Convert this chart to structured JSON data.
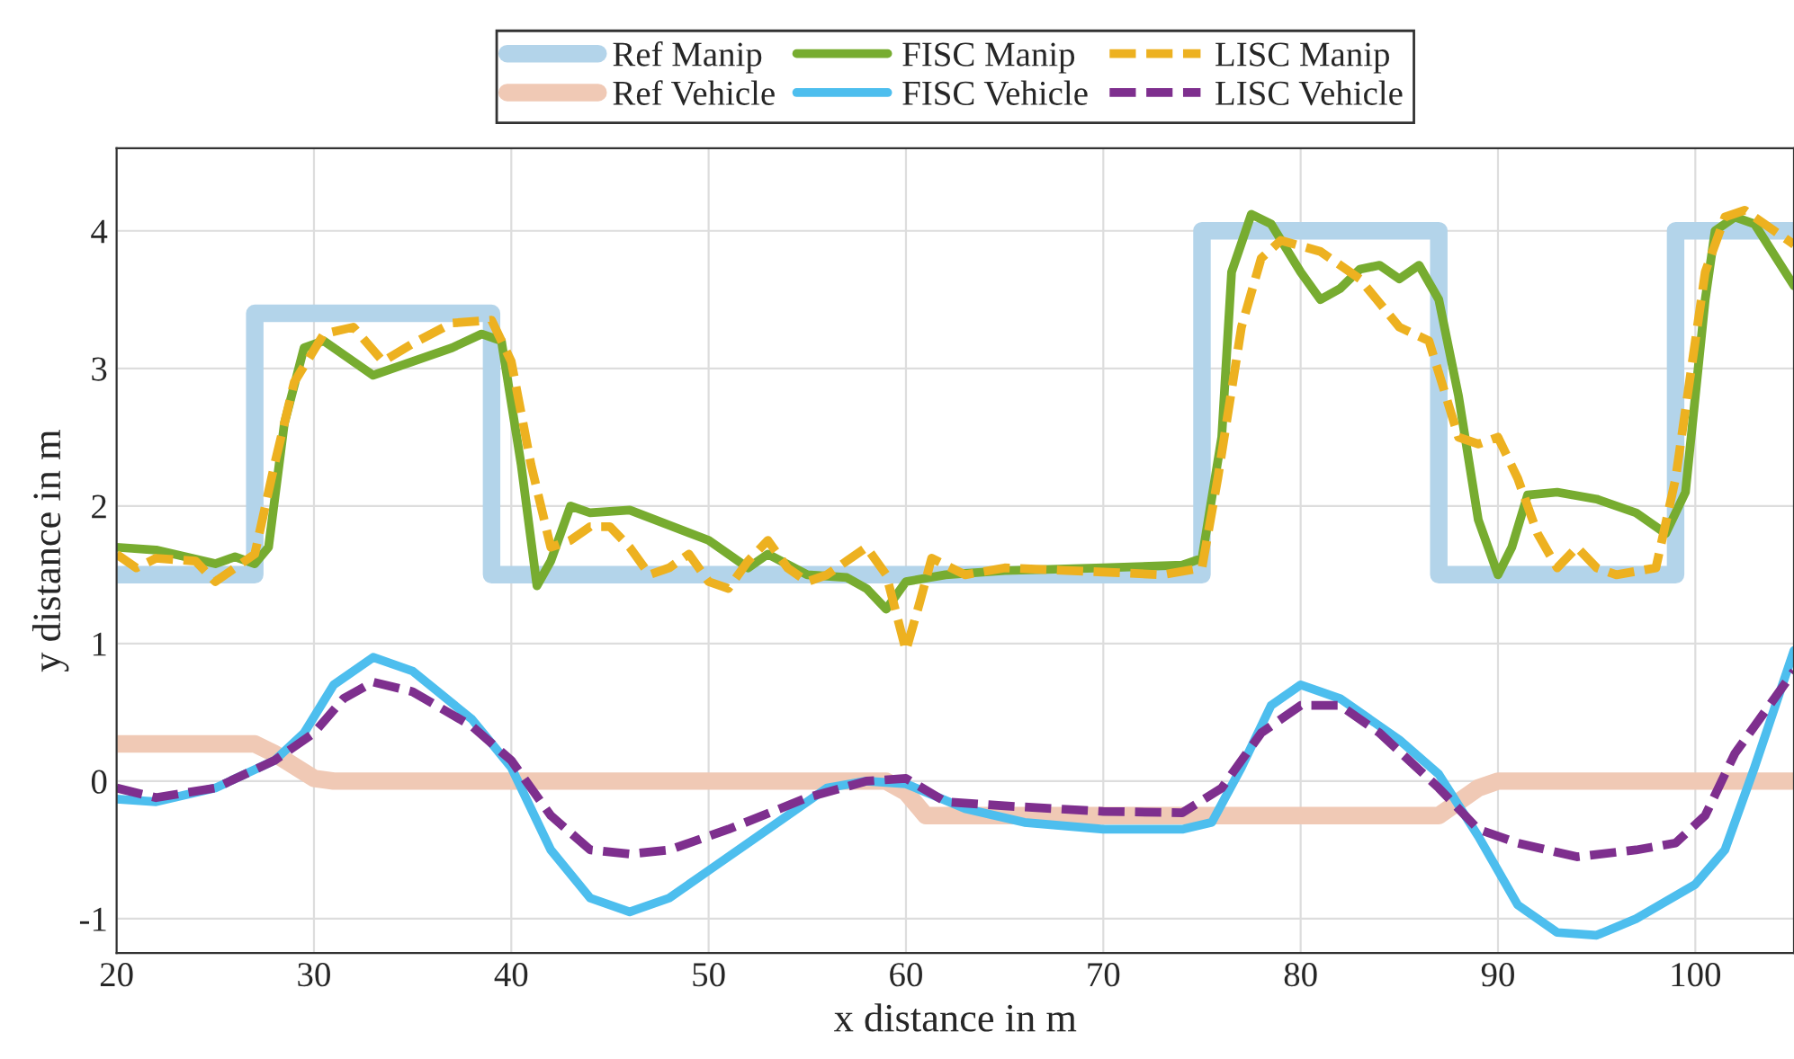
{
  "chart_data": {
    "type": "line",
    "xlabel": "x distance in m",
    "ylabel": "y distance in m",
    "xlim": [
      20,
      105
    ],
    "ylim": [
      -1.25,
      4.6
    ],
    "xticks": [
      20,
      30,
      40,
      50,
      60,
      70,
      80,
      90,
      100
    ],
    "yticks": [
      -1,
      0,
      1,
      2,
      3,
      4
    ],
    "grid": true,
    "legend": "top",
    "series": [
      {
        "name": "Ref Manip",
        "color": "#b3d4ea",
        "line_style": "solid",
        "x": [
          20,
          27,
          27,
          39,
          39,
          75,
          75,
          87,
          87,
          99,
          99,
          105
        ],
        "values": [
          1.5,
          1.5,
          3.4,
          3.4,
          1.5,
          1.5,
          4,
          4,
          1.5,
          1.5,
          4,
          4
        ]
      },
      {
        "name": "Ref Vehicle",
        "color": "#f0c9b5",
        "line_style": "solid",
        "x": [
          20,
          27,
          28,
          30,
          31,
          59,
          60,
          61,
          87,
          89,
          90,
          105
        ],
        "values": [
          0.27,
          0.27,
          0.2,
          0.02,
          0,
          0,
          -0.08,
          -0.25,
          -0.25,
          -0.05,
          0,
          0
        ]
      },
      {
        "name": "FISC Manip",
        "color": "#77ac30",
        "line_style": "solid",
        "x": [
          20,
          22,
          25,
          26,
          27,
          27.7,
          28.5,
          29.5,
          30.5,
          33,
          35,
          37,
          38.5,
          39.5,
          40.5,
          41.3,
          42,
          43,
          44,
          46,
          50,
          52,
          53,
          55,
          57,
          58,
          59,
          60,
          62,
          65,
          70,
          74,
          75,
          76,
          76.5,
          77.5,
          78.5,
          80,
          81,
          82,
          83,
          84,
          85,
          86,
          87,
          88,
          89,
          90,
          90.7,
          91.5,
          93,
          95,
          97,
          98.5,
          99.5,
          100.5,
          101,
          102,
          103,
          105
        ],
        "values": [
          1.7,
          1.68,
          1.58,
          1.63,
          1.58,
          1.7,
          2.6,
          3.15,
          3.2,
          2.95,
          3.05,
          3.15,
          3.25,
          3.2,
          2.3,
          1.42,
          1.6,
          2.0,
          1.95,
          1.97,
          1.75,
          1.55,
          1.65,
          1.5,
          1.48,
          1.4,
          1.25,
          1.45,
          1.5,
          1.53,
          1.55,
          1.57,
          1.62,
          2.5,
          3.7,
          4.12,
          4.05,
          3.7,
          3.5,
          3.58,
          3.72,
          3.75,
          3.65,
          3.75,
          3.5,
          2.8,
          1.9,
          1.5,
          1.7,
          2.08,
          2.1,
          2.05,
          1.95,
          1.8,
          2.1,
          3.5,
          4.0,
          4.1,
          4.05,
          3.6
        ]
      },
      {
        "name": "FISC Vehicle",
        "color": "#4dbeee",
        "line_style": "solid",
        "x": [
          20,
          22,
          25,
          28,
          29.5,
          31,
          33,
          35,
          38,
          40,
          42,
          44,
          46,
          48,
          50,
          53,
          56,
          58,
          60,
          63,
          66,
          70,
          74,
          75.5,
          77,
          78.5,
          80,
          82,
          85,
          87,
          89,
          91,
          93,
          95,
          97,
          100,
          101.5,
          103,
          105
        ],
        "values": [
          -0.13,
          -0.15,
          -0.05,
          0.15,
          0.35,
          0.7,
          0.9,
          0.8,
          0.45,
          0.1,
          -0.5,
          -0.85,
          -0.95,
          -0.85,
          -0.65,
          -0.35,
          -0.05,
          0.0,
          -0.02,
          -0.2,
          -0.3,
          -0.35,
          -0.35,
          -0.3,
          0.1,
          0.55,
          0.7,
          0.6,
          0.3,
          0.05,
          -0.4,
          -0.9,
          -1.1,
          -1.12,
          -1.0,
          -0.75,
          -0.5,
          0.1,
          0.95
        ]
      },
      {
        "name": "LISC Manip",
        "color": "#edb120",
        "line_style": "dashed",
        "x": [
          20,
          21,
          22,
          24,
          25,
          26,
          27,
          28,
          29,
          30.5,
          32,
          33.5,
          35,
          37,
          39,
          40,
          41,
          42,
          43,
          44,
          45,
          46,
          47,
          48,
          49,
          50,
          51,
          52,
          53,
          54,
          55,
          56,
          57,
          58,
          59,
          60,
          60.7,
          61.3,
          63,
          65,
          70,
          73,
          75,
          75.8,
          77,
          78,
          79,
          81,
          83,
          85,
          86.5,
          88,
          89,
          90,
          91,
          92,
          93,
          94,
          95,
          96,
          98,
          99,
          100.5,
          101.5,
          102.5,
          104,
          105
        ],
        "values": [
          1.65,
          1.55,
          1.62,
          1.6,
          1.45,
          1.55,
          1.65,
          2.3,
          2.9,
          3.25,
          3.3,
          3.05,
          3.18,
          3.33,
          3.35,
          3.05,
          2.3,
          1.7,
          1.75,
          1.85,
          1.85,
          1.7,
          1.5,
          1.55,
          1.65,
          1.45,
          1.4,
          1.6,
          1.75,
          1.55,
          1.45,
          1.5,
          1.6,
          1.7,
          1.5,
          0.95,
          1.3,
          1.62,
          1.5,
          1.55,
          1.52,
          1.5,
          1.55,
          2.2,
          3.3,
          3.8,
          3.93,
          3.85,
          3.65,
          3.3,
          3.2,
          2.5,
          2.45,
          2.5,
          2.2,
          1.8,
          1.55,
          1.7,
          1.55,
          1.5,
          1.55,
          2.2,
          3.7,
          4.1,
          4.15,
          4.0,
          3.9
        ]
      },
      {
        "name": "LISC Vehicle",
        "color": "#7e2f8e",
        "line_style": "dashed",
        "x": [
          20,
          22,
          25,
          28,
          30,
          31.5,
          33,
          35,
          38,
          40,
          42,
          44,
          46,
          48,
          51,
          55,
          58,
          60,
          62,
          65,
          70,
          74,
          76,
          78,
          80,
          82,
          84,
          87,
          89,
          91,
          94,
          97,
          99,
          100.5,
          102,
          104,
          105
        ],
        "values": [
          -0.05,
          -0.12,
          -0.05,
          0.15,
          0.35,
          0.6,
          0.72,
          0.65,
          0.4,
          0.15,
          -0.25,
          -0.5,
          -0.53,
          -0.5,
          -0.35,
          -0.12,
          0.0,
          0.02,
          -0.15,
          -0.18,
          -0.22,
          -0.23,
          -0.05,
          0.35,
          0.55,
          0.55,
          0.35,
          -0.05,
          -0.35,
          -0.45,
          -0.55,
          -0.5,
          -0.45,
          -0.25,
          0.2,
          0.6,
          0.8
        ]
      }
    ]
  }
}
